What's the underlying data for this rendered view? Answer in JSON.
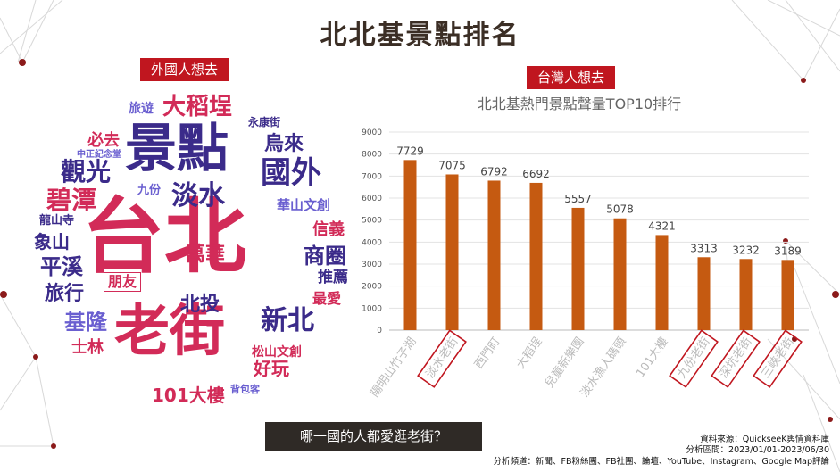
{
  "title": "北北基景點排名",
  "left_tag": "外國人想去",
  "right_tag": "台灣人想去",
  "word_cloud": [
    {
      "text": "台北",
      "color": "#d22b58"
    },
    {
      "text": "老街",
      "color": "#d22b58"
    },
    {
      "text": "景點",
      "color": "#3b2b8a"
    },
    {
      "text": "大稻埕",
      "color": "#d22b58"
    },
    {
      "text": "國外",
      "color": "#3b2b8a"
    },
    {
      "text": "淡水",
      "color": "#3b2b8a"
    },
    {
      "text": "觀光",
      "color": "#3b2b8a"
    },
    {
      "text": "碧潭",
      "color": "#d22b58"
    },
    {
      "text": "新北",
      "color": "#3b2b8a"
    },
    {
      "text": "商圈",
      "color": "#3b2b8a"
    },
    {
      "text": "平溪",
      "color": "#3b2b8a"
    },
    {
      "text": "基隆",
      "color": "#6a5fd0"
    },
    {
      "text": "萬華",
      "color": "#d22b58"
    },
    {
      "text": "北投",
      "color": "#3b2b8a"
    },
    {
      "text": "旅行",
      "color": "#3b2b8a"
    },
    {
      "text": "象山",
      "color": "#3b2b8a"
    },
    {
      "text": "101大樓",
      "color": "#d22b58"
    },
    {
      "text": "烏來",
      "color": "#3b2b8a"
    },
    {
      "text": "必去",
      "color": "#d22b58"
    },
    {
      "text": "信義",
      "color": "#d22b58"
    },
    {
      "text": "推薦",
      "color": "#3b2b8a"
    },
    {
      "text": "最愛",
      "color": "#d22b58"
    },
    {
      "text": "好玩",
      "color": "#d22b58"
    },
    {
      "text": "士林",
      "color": "#d22b58"
    },
    {
      "text": "朋友",
      "color": "#d22b58"
    },
    {
      "text": "旅遊",
      "color": "#6a5fd0"
    },
    {
      "text": "九份",
      "color": "#6a5fd0"
    },
    {
      "text": "華山文創",
      "color": "#6a5fd0"
    },
    {
      "text": "松山文創",
      "color": "#d22b58"
    },
    {
      "text": "龍山寺",
      "color": "#3b2b8a"
    },
    {
      "text": "永康街",
      "color": "#3b2b8a"
    },
    {
      "text": "中正紀念堂",
      "color": "#6a5fd0"
    },
    {
      "text": "背包客",
      "color": "#6a5fd0"
    }
  ],
  "chart_data": {
    "type": "bar",
    "title": "北北基熱門景點聲量TOP10排行",
    "categories": [
      "陽明山竹子湖",
      "淡水老街",
      "西門町",
      "大稻埕",
      "兒童新樂園",
      "淡水漁人碼頭",
      "101大樓",
      "九份老街",
      "深坑老街",
      "三峽老街"
    ],
    "values": [
      7729,
      7075,
      6792,
      6692,
      5557,
      5078,
      4321,
      3313,
      3232,
      3189
    ],
    "highlighted": [
      "淡水老街",
      "九份老街",
      "深坑老街",
      "三峽老街"
    ],
    "ylim": [
      0,
      9000
    ],
    "yticks": [
      0,
      1000,
      2000,
      3000,
      4000,
      5000,
      6000,
      7000,
      8000,
      9000
    ],
    "bar_color": "#c55a11",
    "highlight_color": "#c0161f",
    "grid": true
  },
  "question": "哪一國的人都愛逛老街？",
  "source": {
    "line1": "資料來源：QuickseeK輿情資料庫",
    "line2": "分析區間：2023/01/01-2023/06/30",
    "line3": "分析頻道：新聞、FB粉絲團、FB社團、論壇、YouTube、Instagram、Google Map評論"
  }
}
